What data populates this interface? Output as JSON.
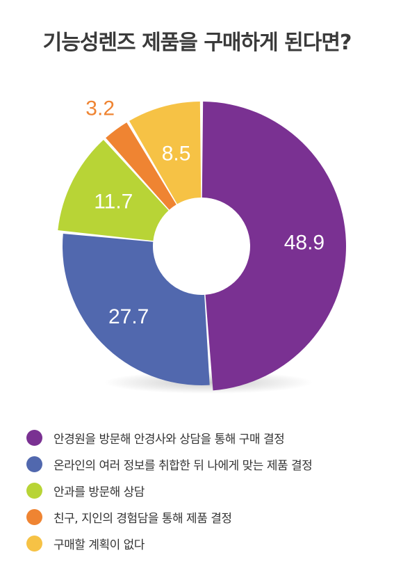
{
  "title": "기능성렌즈 제품을 구매하게 된다면?",
  "chart_data": {
    "type": "pie",
    "donut": true,
    "title": "기능성렌즈 제품을 구매하게 된다면?",
    "legend_position": "bottom",
    "unit": "%",
    "series": [
      {
        "name": "안경원을 방문해 안경사와 상담을 통해 구매 결정",
        "value": 48.9,
        "label": "48.9",
        "color": "#7a3192"
      },
      {
        "name": "온라인의 여러 정보를 취합한 뒤 나에게 맞는 제품 결정",
        "value": 27.7,
        "label": "27.7",
        "color": "#5168ae"
      },
      {
        "name": "안과를 방문해 상담",
        "value": 11.7,
        "label": "11.7",
        "color": "#b8d436"
      },
      {
        "name": "친구, 지인의 경험담을 통해 제품 결정",
        "value": 3.2,
        "label": "3.2",
        "color": "#ef8432"
      },
      {
        "name": "구매할 계획이 없다",
        "value": 8.5,
        "label": "8.5",
        "color": "#f6c245"
      }
    ]
  }
}
